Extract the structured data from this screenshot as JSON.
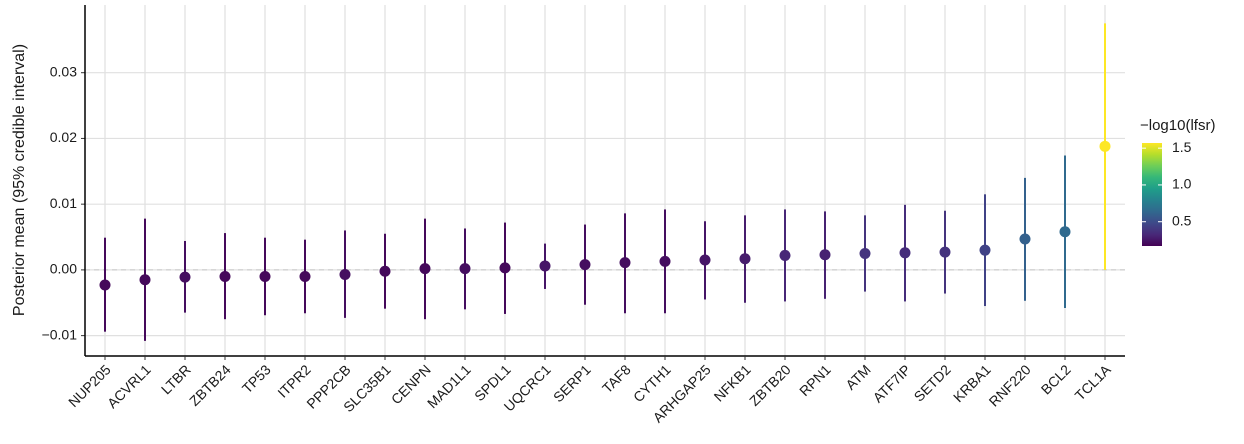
{
  "chart_data": {
    "type": "pointrange",
    "y_label": "Posterior mean (95% credible interval)",
    "categories": [
      "NUP205",
      "ACVRL1",
      "LTBR",
      "ZBTB24",
      "TP53",
      "ITPR2",
      "PPP2CB",
      "SLC35B1",
      "CENPN",
      "MAD1L1",
      "SPDL1",
      "UQCRC1",
      "SERP1",
      "TAF8",
      "CYTH1",
      "ARHGAP25",
      "NFKB1",
      "ZBTB20",
      "RPN1",
      "ATM",
      "ATF7IP",
      "SETD2",
      "KRBA1",
      "RNF220",
      "BCL2",
      "TCL1A"
    ],
    "values": [
      -0.0023,
      -0.0015,
      -0.0011,
      -0.001,
      -0.001,
      -0.001,
      -0.0007,
      -0.0002,
      0.0002,
      0.0002,
      0.0003,
      0.0006,
      0.0008,
      0.0011,
      0.0013,
      0.0015,
      0.0017,
      0.0022,
      0.0023,
      0.0025,
      0.0026,
      0.0027,
      0.003,
      0.0047,
      0.0058,
      0.0188
    ],
    "lower": [
      -0.0094,
      -0.0108,
      -0.0065,
      -0.0075,
      -0.0069,
      -0.0066,
      -0.0073,
      -0.0059,
      -0.0075,
      -0.006,
      -0.0067,
      -0.0029,
      -0.0053,
      -0.0066,
      -0.0066,
      -0.0045,
      -0.005,
      -0.0048,
      -0.0044,
      -0.0033,
      -0.0048,
      -0.0036,
      -0.0055,
      -0.0047,
      -0.0058,
      0.0
    ],
    "upper": [
      0.0049,
      0.0078,
      0.0044,
      0.0056,
      0.0049,
      0.0046,
      0.006,
      0.0055,
      0.0078,
      0.0063,
      0.0072,
      0.004,
      0.0069,
      0.0086,
      0.0092,
      0.0074,
      0.0083,
      0.0092,
      0.0089,
      0.0083,
      0.0099,
      0.009,
      0.0115,
      0.014,
      0.0174,
      0.0375
    ],
    "color_label": "−log10(lfsr)",
    "color_values": [
      0.2,
      0.2,
      0.22,
      0.2,
      0.2,
      0.2,
      0.22,
      0.2,
      0.2,
      0.22,
      0.2,
      0.25,
      0.22,
      0.22,
      0.22,
      0.25,
      0.28,
      0.32,
      0.3,
      0.38,
      0.35,
      0.38,
      0.45,
      0.6,
      0.65,
      1.57
    ],
    "clim": [
      0.17,
      1.57
    ],
    "cticks": [
      0.5,
      {
        "value": 1.0,
        "label": "1.0"
      },
      1.5
    ],
    "colormap": [
      "#440154",
      "#482878",
      "#3e4989",
      "#31688e",
      "#26828e",
      "#1f9e89",
      "#35b779",
      "#6ece58",
      "#b5de2b",
      "#fde725"
    ],
    "ylim": [
      -0.0131,
      0.0403
    ],
    "yticks": [
      {
        "value": -0.01,
        "label": "−0.01"
      },
      {
        "value": 0,
        "label": "0.00"
      },
      0.01,
      0.02,
      0.03
    ],
    "grid": true
  }
}
